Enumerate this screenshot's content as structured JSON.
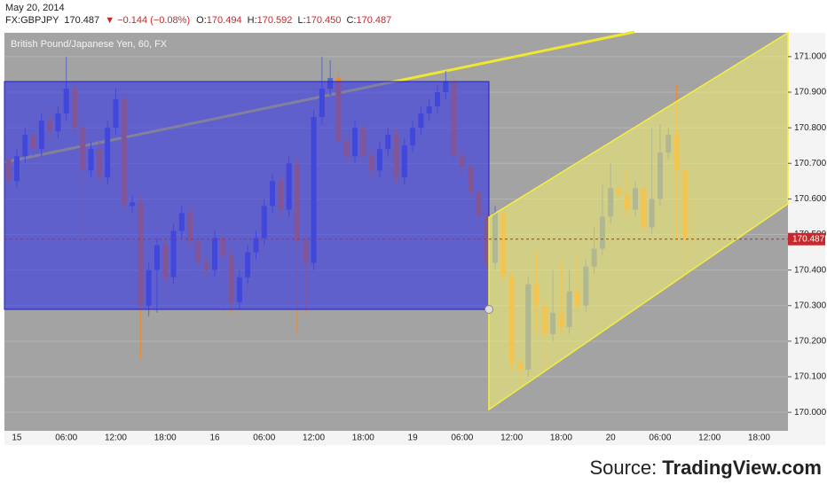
{
  "header": {
    "date": "May 20, 2014",
    "symbol": "FX:GBPJPY",
    "last": "170.487",
    "change": "▼ −0.144 (−0.08%)",
    "ohlc": [
      {
        "label": "O:",
        "value": "170.494"
      },
      {
        "label": "H:",
        "value": "170.592"
      },
      {
        "label": "L:",
        "value": "170.450"
      },
      {
        "label": "C:",
        "value": "170.487"
      }
    ]
  },
  "source": {
    "label": "Source:",
    "name": "TradingView.com"
  },
  "chart_data": {
    "type": "candlestick",
    "title": "British Pound/Japanese Yen, 60, FX",
    "categories": [
      null,
      "15",
      null,
      null,
      null,
      null,
      null,
      "06:00",
      null,
      null,
      null,
      null,
      null,
      "12:00",
      null,
      null,
      null,
      null,
      null,
      "18:00",
      null,
      null,
      null,
      null,
      null,
      "16",
      null,
      null,
      null,
      null,
      null,
      "06:00",
      null,
      null,
      null,
      null,
      null,
      "12:00",
      null,
      null,
      null,
      null,
      null,
      "18:00",
      null,
      null,
      null,
      null,
      null,
      "19",
      null,
      null,
      null,
      null,
      null,
      "06:00",
      null,
      null,
      null,
      null,
      null,
      "12:00",
      null,
      null,
      null,
      null,
      null,
      "18:00",
      null,
      null,
      null,
      null,
      null,
      "20",
      null,
      null,
      null,
      null,
      null,
      "06:00",
      null,
      null,
      null,
      null,
      null,
      "12:00",
      null,
      null,
      null,
      null,
      null,
      "18:00",
      null,
      null,
      null
    ],
    "open": [
      170.71,
      170.65,
      170.72,
      170.78,
      170.74,
      170.82,
      170.79,
      170.84,
      170.91,
      170.8,
      170.68,
      170.74,
      170.66,
      170.8,
      170.88,
      170.58,
      170.59,
      170.3,
      170.4,
      170.47,
      170.38,
      170.51,
      170.56,
      170.48,
      170.42,
      170.4,
      170.49,
      170.44,
      170.31,
      170.38,
      170.45,
      170.49,
      170.58,
      170.65,
      170.57,
      170.7,
      170.48,
      170.42,
      170.83,
      170.91,
      170.94,
      170.76,
      170.72,
      170.8,
      170.72,
      170.68,
      170.74,
      170.78,
      170.66,
      170.75,
      170.8,
      170.84,
      170.86,
      170.9,
      170.93,
      170.72,
      170.69,
      170.62,
      170.55,
      170.42,
      170.56,
      170.38,
      170.14,
      170.12,
      170.36,
      170.3,
      170.22,
      170.28,
      170.24,
      170.34,
      170.3,
      170.41,
      170.46,
      170.55,
      170.63,
      170.61,
      170.57,
      170.63,
      170.52,
      170.6,
      170.73,
      170.78,
      170.68,
      170.49,
      null,
      null,
      null,
      null,
      null,
      null,
      null,
      null,
      null,
      null,
      null
    ],
    "high": [
      170.73,
      170.74,
      170.8,
      170.81,
      170.84,
      170.85,
      170.86,
      171.0,
      170.93,
      170.82,
      170.76,
      170.76,
      170.82,
      170.91,
      170.9,
      170.61,
      170.61,
      170.42,
      170.49,
      170.49,
      170.53,
      170.58,
      170.58,
      170.5,
      170.44,
      170.51,
      170.51,
      170.46,
      170.4,
      170.47,
      170.51,
      170.6,
      170.67,
      170.67,
      170.72,
      170.72,
      170.5,
      170.85,
      171.0,
      170.99,
      170.96,
      170.78,
      170.82,
      170.82,
      170.74,
      170.76,
      170.8,
      170.8,
      170.77,
      170.82,
      170.86,
      170.88,
      170.92,
      170.96,
      170.95,
      170.74,
      170.71,
      170.64,
      170.57,
      170.58,
      170.58,
      170.4,
      170.16,
      170.38,
      170.45,
      170.32,
      170.4,
      170.43,
      170.4,
      170.45,
      170.43,
      170.52,
      170.64,
      170.7,
      170.65,
      170.68,
      170.65,
      170.65,
      170.8,
      170.81,
      170.8,
      170.92,
      170.7,
      170.6,
      null,
      null,
      null,
      null,
      null,
      null,
      null,
      null,
      null,
      null,
      null
    ],
    "low": [
      170.58,
      170.63,
      170.7,
      170.72,
      170.72,
      170.77,
      170.77,
      170.82,
      170.78,
      170.48,
      170.66,
      170.64,
      170.64,
      170.78,
      170.56,
      170.56,
      170.15,
      170.27,
      170.28,
      170.36,
      170.36,
      170.49,
      170.46,
      170.4,
      170.38,
      170.38,
      170.28,
      170.28,
      170.29,
      170.36,
      170.43,
      170.47,
      170.56,
      170.55,
      170.55,
      170.22,
      170.28,
      170.4,
      170.81,
      170.89,
      170.74,
      170.7,
      170.7,
      170.7,
      170.66,
      170.66,
      170.72,
      170.64,
      170.64,
      170.73,
      170.78,
      170.82,
      170.84,
      170.88,
      170.7,
      170.67,
      170.6,
      170.53,
      170.4,
      170.4,
      170.36,
      170.12,
      170.07,
      170.1,
      170.22,
      170.12,
      170.2,
      170.22,
      170.22,
      170.28,
      170.28,
      170.39,
      170.44,
      170.53,
      170.59,
      170.55,
      170.55,
      170.5,
      170.5,
      170.58,
      170.71,
      170.48,
      170.37,
      170.45,
      null,
      null,
      null,
      null,
      null,
      null,
      null,
      null,
      null,
      null,
      null
    ],
    "close": [
      170.65,
      170.72,
      170.78,
      170.74,
      170.82,
      170.79,
      170.84,
      170.91,
      170.8,
      170.68,
      170.74,
      170.66,
      170.8,
      170.88,
      170.58,
      170.59,
      170.3,
      170.4,
      170.47,
      170.38,
      170.51,
      170.56,
      170.48,
      170.42,
      170.4,
      170.49,
      170.44,
      170.31,
      170.38,
      170.45,
      170.49,
      170.58,
      170.65,
      170.57,
      170.7,
      170.48,
      170.42,
      170.83,
      170.91,
      170.94,
      170.76,
      170.72,
      170.8,
      170.72,
      170.68,
      170.74,
      170.78,
      170.66,
      170.75,
      170.8,
      170.84,
      170.86,
      170.9,
      170.93,
      170.72,
      170.69,
      170.62,
      170.55,
      170.42,
      170.56,
      170.38,
      170.14,
      170.12,
      170.36,
      170.3,
      170.22,
      170.28,
      170.24,
      170.34,
      170.3,
      170.41,
      170.46,
      170.55,
      170.63,
      170.61,
      170.57,
      170.63,
      170.52,
      170.6,
      170.73,
      170.78,
      170.68,
      170.49,
      170.487,
      null,
      null,
      null,
      null,
      null,
      null,
      null,
      null,
      null,
      null,
      null
    ],
    "up_color": "#5b6bbf",
    "down_color": "#ee8a2c",
    "current_price": 170.487,
    "current_color": "#c8282c",
    "ylim": [
      169.948,
      171.067
    ],
    "yticks": [
      {
        "value": 170.0,
        "label": "170.000"
      },
      {
        "value": 170.1,
        "label": "170.100"
      },
      {
        "value": 170.2,
        "label": "170.200"
      },
      {
        "value": 170.3,
        "label": "170.300"
      },
      {
        "value": 170.4,
        "label": "170.400"
      },
      {
        "value": 170.5,
        "label": "170.500"
      },
      {
        "value": 170.6,
        "label": "170.600"
      },
      {
        "value": 170.7,
        "label": "170.700"
      },
      {
        "value": 170.8,
        "label": "170.800"
      },
      {
        "value": 170.9,
        "label": "170.900"
      },
      {
        "value": 171.0,
        "label": "171.000"
      }
    ],
    "grid": true
  }
}
